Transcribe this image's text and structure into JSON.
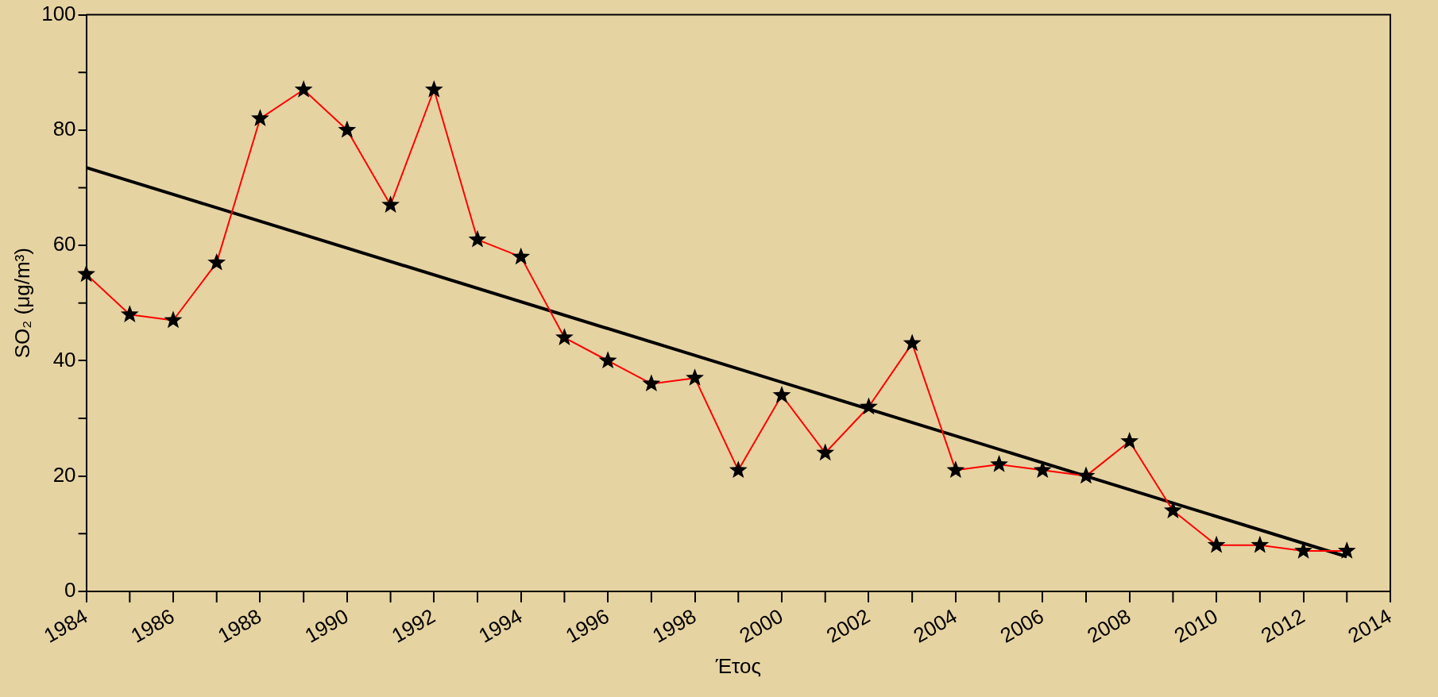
{
  "chart_data": {
    "type": "line",
    "xlabel": "Έτος",
    "ylabel": "SO₂ (μg/m³)",
    "x": [
      1984,
      1985,
      1986,
      1987,
      1988,
      1989,
      1990,
      1991,
      1992,
      1993,
      1994,
      1995,
      1996,
      1997,
      1998,
      1999,
      2000,
      2001,
      2002,
      2003,
      2004,
      2005,
      2006,
      2007,
      2008,
      2009,
      2010,
      2011,
      2012,
      2013
    ],
    "series": [
      {
        "type": "line",
        "color": "#ff0000",
        "marker": "star",
        "values": [
          55,
          48,
          47,
          57,
          82,
          87,
          80,
          67,
          87,
          61,
          58,
          44,
          40,
          36,
          37,
          21,
          34,
          24,
          32,
          43,
          21,
          22,
          21,
          20,
          26,
          14,
          8,
          8,
          7,
          7
        ]
      },
      {
        "type": "line",
        "color": "#000000",
        "marker": "none",
        "x": [
          1984,
          2013
        ],
        "values": [
          73.5,
          6
        ]
      }
    ],
    "xlim": [
      1984,
      2014
    ],
    "xticks": [
      1984,
      {
        "value": 1985,
        "label": null
      },
      1986,
      {
        "value": 1987,
        "label": null
      },
      1988,
      {
        "value": 1989,
        "label": null
      },
      1990,
      {
        "value": 1991,
        "label": null
      },
      1992,
      {
        "value": 1993,
        "label": null
      },
      1994,
      {
        "value": 1995,
        "label": null
      },
      1996,
      {
        "value": 1997,
        "label": null
      },
      1998,
      {
        "value": 1999,
        "label": null
      },
      2000,
      {
        "value": 2001,
        "label": null
      },
      2002,
      {
        "value": 2003,
        "label": null
      },
      2004,
      {
        "value": 2005,
        "label": null
      },
      2006,
      {
        "value": 2007,
        "label": null
      },
      2008,
      {
        "value": 2009,
        "label": null
      },
      2010,
      {
        "value": 2011,
        "label": null
      },
      2012,
      {
        "value": 2013,
        "label": null
      },
      2014
    ],
    "ylim": [
      0,
      100
    ],
    "yticks": [
      0,
      {
        "value": 10,
        "label": null
      },
      20,
      {
        "value": 30,
        "label": null
      },
      40,
      {
        "value": 50,
        "label": null
      },
      60,
      {
        "value": 70,
        "label": null
      },
      80,
      {
        "value": 90,
        "label": null
      },
      100
    ],
    "grid": false,
    "legend": false,
    "line_style": "solid"
  }
}
